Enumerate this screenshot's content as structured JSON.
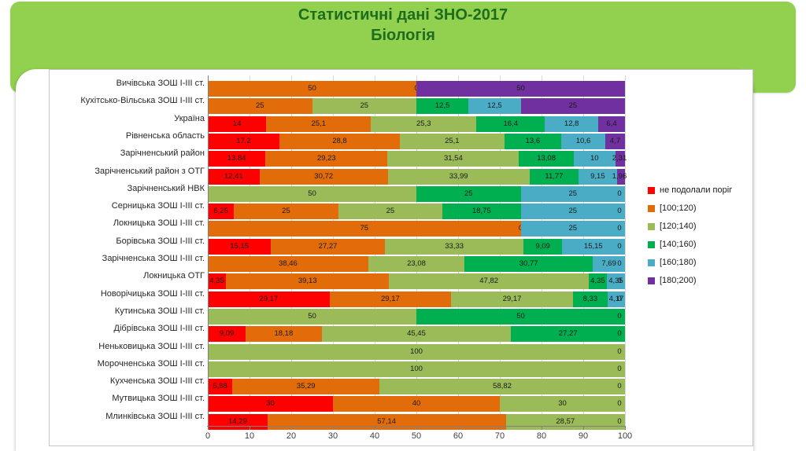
{
  "title": {
    "line1": "Статистичні дані  ЗНО-2017",
    "line2": "Біологія"
  },
  "colors": {
    "header_band": "#92D050",
    "title_text": "#1E6C1E",
    "grid": "#D9D9D9",
    "axis": "#808080",
    "value_label": "#1A1A1A",
    "series": [
      "#FF0000",
      "#E36C0A",
      "#9BBB59",
      "#00B050",
      "#4BACC6",
      "#7030A0"
    ]
  },
  "chart_data": {
    "type": "bar",
    "stacked": true,
    "orientation": "horizontal",
    "title": "",
    "xlabel": "",
    "ylabel": "",
    "xlim": [
      0,
      100
    ],
    "x_ticks": [
      0,
      10,
      20,
      30,
      40,
      50,
      60,
      70,
      80,
      90,
      100
    ],
    "grid": true,
    "legend_position": "right",
    "legend": [
      {
        "label": "не подолали поріг",
        "color": "#FF0000"
      },
      {
        "label": "[100;120)",
        "color": "#E36C0A"
      },
      {
        "label": "[120;140)",
        "color": "#9BBB59"
      },
      {
        "label": "[140;160)",
        "color": "#00B050"
      },
      {
        "label": "[160;180)",
        "color": "#4BACC6"
      },
      {
        "label": "[180;200)",
        "color": "#7030A0"
      }
    ],
    "series_names": [
      "не подолали поріг",
      "[100;120)",
      "[120;140)",
      "[140;160)",
      "[160;180)",
      "[180;200)"
    ],
    "rows": [
      {
        "category": "Вичівська  ЗОШ І-ІІІ ст.",
        "values": [
          0,
          50,
          0,
          0,
          0,
          50
        ],
        "labels": [
          "0",
          "50",
          "0",
          "",
          "",
          "50"
        ]
      },
      {
        "category": "Кухітсько-Вільська  ЗОШ І-ІІІ ст.",
        "values": [
          0,
          25,
          25,
          12.5,
          12.5,
          25
        ],
        "labels": [
          "0",
          "25",
          "25",
          "12,5",
          "12,5",
          "25"
        ]
      },
      {
        "category": "Україна",
        "values": [
          14,
          25.1,
          25.3,
          16.4,
          12.8,
          6.4
        ],
        "labels": [
          "14",
          "25,1",
          "25,3",
          "16,4",
          "12,8",
          "6,4"
        ]
      },
      {
        "category": "Рівненська  область",
        "values": [
          17.2,
          28.8,
          25.1,
          13.6,
          10.6,
          4.7
        ],
        "labels": [
          "17,2",
          "28,8",
          "25,1",
          "13,6",
          "10,6",
          "4,7"
        ]
      },
      {
        "category": "Зарічненський  район",
        "values": [
          13.84,
          29.23,
          31.54,
          13.08,
          10,
          2.31
        ],
        "labels": [
          "13,84",
          "29,23",
          "31,54",
          "13,08",
          "10",
          "2,31"
        ]
      },
      {
        "category": "Зарічненський  район з ОТГ",
        "values": [
          12.41,
          30.72,
          33.99,
          11.77,
          9.15,
          1.96
        ],
        "labels": [
          "12,41",
          "30,72",
          "33,99",
          "11,77",
          "9,15",
          "1,96"
        ]
      },
      {
        "category": "Зарічненський  НВК",
        "values": [
          0,
          0,
          50,
          25,
          25,
          0
        ],
        "labels": [
          "0",
          "",
          "50",
          "25",
          "25",
          "0"
        ]
      },
      {
        "category": "Серницька  ЗОШ І-ІІІ ст.",
        "values": [
          6.25,
          25,
          25,
          18.75,
          25,
          0
        ],
        "labels": [
          "6,25",
          "25",
          "25",
          "18,75",
          "25",
          "0"
        ]
      },
      {
        "category": "Локницька  ЗОШ І-ІІІ ст.",
        "values": [
          0,
          75,
          0,
          0,
          25,
          0
        ],
        "labels": [
          "0",
          "75",
          "0",
          "",
          "25",
          "0"
        ]
      },
      {
        "category": "Борівська  ЗОШ І-ІІІ ст.",
        "values": [
          15.15,
          27.27,
          33.33,
          9.09,
          15.15,
          0
        ],
        "labels": [
          "15,15",
          "27,27",
          "33,33",
          "9,09",
          "15,15",
          "0"
        ]
      },
      {
        "category": "Зарічненська  ЗОШ І-ІІІ ст.",
        "values": [
          0,
          38.46,
          23.08,
          30.77,
          7.69,
          0
        ],
        "labels": [
          "0",
          "38,46",
          "23,08",
          "30,77",
          "7,69",
          "0"
        ]
      },
      {
        "category": "Локницька  ОТГ",
        "values": [
          4.35,
          39.13,
          47.82,
          4.35,
          4.35,
          0
        ],
        "labels": [
          "4,35",
          "39,13",
          "47,82",
          "4,35",
          "4,35",
          "0"
        ]
      },
      {
        "category": "Новорічицька  ЗОШ І-ІІІ ст.",
        "values": [
          29.17,
          29.17,
          29.17,
          8.33,
          4.17,
          0
        ],
        "labels": [
          "29,17",
          "29,17",
          "29,17",
          "8,33",
          "4,17",
          "0"
        ]
      },
      {
        "category": "Кутинська  ЗОШ І-ІІІ ст.",
        "values": [
          0,
          0,
          50,
          50,
          0,
          0
        ],
        "labels": [
          "0",
          "",
          "50",
          "50",
          "0",
          ""
        ]
      },
      {
        "category": "Дібрівська  ЗОШ І-ІІІ ст.",
        "values": [
          9.09,
          18.18,
          45.45,
          27.27,
          0,
          0
        ],
        "labels": [
          "9,09",
          "18,18",
          "45,45",
          "27,27",
          "0",
          ""
        ]
      },
      {
        "category": "Неньковицька  ЗОШ І-ІІІ ст.",
        "values": [
          0,
          0,
          100,
          0,
          0,
          0
        ],
        "labels": [
          "0",
          "",
          "100",
          "0",
          "",
          ""
        ]
      },
      {
        "category": "Морочненська  ЗОШ І-ІІІ ст.",
        "values": [
          0,
          0,
          100,
          0,
          0,
          0
        ],
        "labels": [
          "0",
          "",
          "100",
          "0",
          "",
          ""
        ]
      },
      {
        "category": "Кухченська  ЗОШ І-ІІІ ст.",
        "values": [
          5.88,
          35.29,
          58.82,
          0,
          0,
          0
        ],
        "labels": [
          "5,88",
          "35,29",
          "58,82",
          "0",
          "",
          ""
        ]
      },
      {
        "category": "Мутвицька  ЗОШ І-ІІІ ст.",
        "values": [
          30,
          40,
          30,
          0,
          0,
          0
        ],
        "labels": [
          "30",
          "40",
          "30",
          "0",
          "",
          ""
        ]
      },
      {
        "category": "Млинківська  ЗОШ І-ІІІ ст.",
        "values": [
          14.29,
          57.14,
          28.57,
          0,
          0,
          0
        ],
        "labels": [
          "14,29",
          "57,14",
          "28,57",
          "0",
          "",
          ""
        ]
      }
    ]
  }
}
